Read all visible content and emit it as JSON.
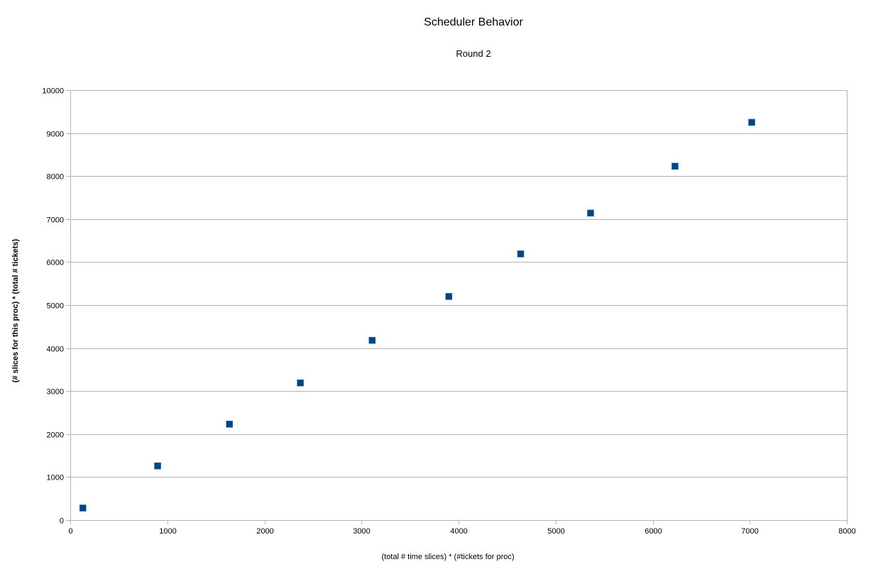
{
  "chart_data": {
    "type": "scatter",
    "title": "Scheduler Behavior",
    "subtitle": "Round 2",
    "xlabel": "(total # time slices) * (#tickets for proc)",
    "ylabel": "(# slices for this proc) * (total # tickets)",
    "xlim": [
      0,
      8000
    ],
    "ylim": [
      0,
      10000
    ],
    "x_ticks": [
      0,
      1000,
      2000,
      3000,
      4000,
      5000,
      6000,
      7000,
      8000
    ],
    "y_ticks": [
      0,
      1000,
      2000,
      3000,
      4000,
      5000,
      6000,
      7000,
      8000,
      9000,
      10000
    ],
    "grid": "horizontal",
    "legend": "none",
    "marker": "square",
    "colors": {
      "marker_fill": "#004586",
      "grid": "#b3b3b3",
      "axis": "#b3b3b3"
    },
    "series": [
      {
        "points": [
          {
            "x": 130,
            "y": 280
          },
          {
            "x": 900,
            "y": 1260
          },
          {
            "x": 1640,
            "y": 2230
          },
          {
            "x": 2370,
            "y": 3190
          },
          {
            "x": 3110,
            "y": 4180
          },
          {
            "x": 3900,
            "y": 5200
          },
          {
            "x": 4640,
            "y": 6190
          },
          {
            "x": 5360,
            "y": 7140
          },
          {
            "x": 6230,
            "y": 8230
          },
          {
            "x": 7020,
            "y": 9250
          }
        ]
      }
    ]
  }
}
